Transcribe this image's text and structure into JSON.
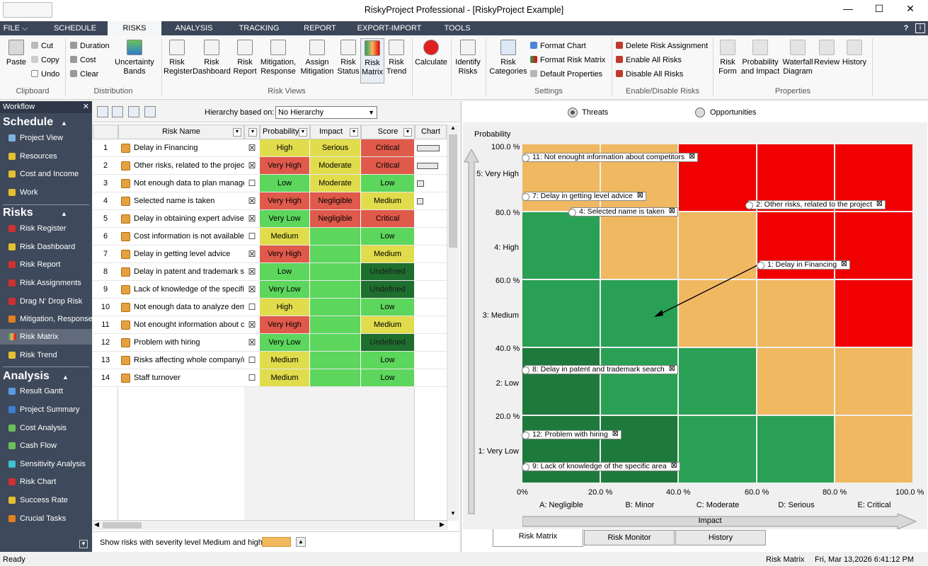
{
  "window": {
    "title": "RiskyProject Professional - [RiskyProject Example]"
  },
  "menu": {
    "tabs": [
      {
        "label": "FILE ⌵"
      },
      {
        "label": "SCHEDULE"
      },
      {
        "label": "RISKS"
      },
      {
        "label": "ANALYSIS"
      },
      {
        "label": "TRACKING"
      },
      {
        "label": "REPORT"
      },
      {
        "label": "EXPORT-IMPORT"
      },
      {
        "label": "TOOLS"
      }
    ],
    "help": "?"
  },
  "ribbon": {
    "paste": "Paste",
    "cut": "Cut",
    "copy": "Copy",
    "undo": "Undo",
    "clipboard": "Clipboard",
    "duration": "Duration",
    "cost": "Cost",
    "clear": "Clear",
    "uncertainty_bands": "Uncertainty Bands",
    "distribution": "Distribution",
    "views": [
      "Risk Register",
      "Risk Dashboard",
      "Risk Report",
      "Mitigation, Response",
      "Assign Mitigation",
      "Risk Status",
      "Risk Matrix",
      "Risk Trend"
    ],
    "risk_views": "Risk Views",
    "calculate": "Calculate",
    "identify_risks": "Identify Risks",
    "risk_categories": "Risk Categories",
    "format_chart": "Format Chart",
    "format_risk_matrix": "Format Risk Matrix",
    "default_properties": "Default Properties",
    "settings": "Settings",
    "delete_risk_assignment": "Delete Risk Assignment",
    "enable_all_risks": "Enable All Risks",
    "disable_all_risks": "Disable All Risks",
    "enable_disable": "Enable/Disable Risks",
    "props": [
      "Risk Form",
      "Probability and Impact",
      "Waterfall Diagram",
      "Review",
      "History"
    ],
    "properties": "Properties"
  },
  "workflow": {
    "header": "Workflow",
    "schedule": {
      "title": "Schedule",
      "items": [
        "Project View",
        "Resources",
        "Cost and Income",
        "Work"
      ]
    },
    "risks": {
      "title": "Risks",
      "items": [
        "Risk Register",
        "Risk Dashboard",
        "Risk Report",
        "Risk Assignments",
        "Drag N' Drop Risk",
        "Mitigation, Response",
        "Risk Matrix",
        "Risk Trend"
      ]
    },
    "analysis": {
      "title": "Analysis",
      "items": [
        "Result Gantt",
        "Project Summary",
        "Cost Analysis",
        "Cash Flow",
        "Sensitivity Analysis",
        "Risk Chart",
        "Success Rate",
        "Crucial Tasks"
      ]
    }
  },
  "grid": {
    "hierarchy_label": "Hierarchy based on:",
    "hierarchy_value": "No Hierarchy",
    "columns": {
      "name": "Risk Name",
      "probability": "Probability",
      "impact": "Impact",
      "score": "Score",
      "chart": "Chart"
    },
    "rows": [
      {
        "n": "1",
        "name": "Delay in Financing",
        "chk": "☒",
        "prob": "High",
        "imp": "Serious",
        "score": "Critical"
      },
      {
        "n": "2",
        "name": "Other risks, related to the project",
        "chk": "☒",
        "prob": "Very High",
        "imp": "Moderate",
        "score": "Critical"
      },
      {
        "n": "3",
        "name": "Not enough data to plan manager",
        "chk": "☐",
        "prob": "Low",
        "imp": "Moderate",
        "score": "Low"
      },
      {
        "n": "4",
        "name": "Selected name is taken",
        "chk": "☒",
        "prob": "Very High",
        "imp": "Negligible",
        "score": "Medium"
      },
      {
        "n": "5",
        "name": "Delay in obtaining expert advise",
        "chk": "☒",
        "prob": "Very Low",
        "imp": "Negligible",
        "score": "Critical"
      },
      {
        "n": "6",
        "name": "Cost information is not available",
        "chk": "☐",
        "prob": "Medium",
        "imp": "",
        "score": "Low"
      },
      {
        "n": "7",
        "name": "Delay in getting level advice",
        "chk": "☒",
        "prob": "Very High",
        "imp": "",
        "score": "Medium"
      },
      {
        "n": "8",
        "name": "Delay in patent and trademark se",
        "chk": "☒",
        "prob": "Low",
        "imp": "",
        "score": "Undefined"
      },
      {
        "n": "9",
        "name": "Lack of knowledge of the specific",
        "chk": "☒",
        "prob": "Very Low",
        "imp": "",
        "score": "Undefined"
      },
      {
        "n": "10",
        "name": "Not enough data to analyze dema",
        "chk": "☐",
        "prob": "High",
        "imp": "",
        "score": "Low"
      },
      {
        "n": "11",
        "name": "Not enought information about co",
        "chk": "☒",
        "prob": "Very High",
        "imp": "",
        "score": "Medium"
      },
      {
        "n": "12",
        "name": "Problem with hiring",
        "chk": "☒",
        "prob": "Very Low",
        "imp": "",
        "score": "Undefined"
      },
      {
        "n": "13",
        "name": "Risks affecting whole company/d",
        "chk": "☐",
        "prob": "Medium",
        "imp": "",
        "score": "Low"
      },
      {
        "n": "14",
        "name": "Staff turnover",
        "chk": "☐",
        "prob": "Medium",
        "imp": "",
        "score": "Low"
      }
    ],
    "severity_text": "Show risks with severity level Medium and higher"
  },
  "matrix": {
    "threats": "Threats",
    "opportunities": "Opportunities",
    "y_title": "Probability",
    "x_title": "Impact",
    "y_ticks": [
      "100.0 %",
      "80.0 %",
      "60.0 %",
      "40.0 %",
      "20.0 %"
    ],
    "y_cats": [
      "5: Very High",
      "4: High",
      "3: Medium",
      "2: Low",
      "1: Very Low"
    ],
    "x_ticks": [
      "0%",
      "20.0 %",
      "40.0 %",
      "60.0 %",
      "80.0 %",
      "100.0 %"
    ],
    "x_cats": [
      "A: Negligible",
      "B: Minor",
      "C: Moderate",
      "D: Serious",
      "E: Critical"
    ],
    "labels": [
      "11: Not enought information about competitors",
      "7: Delay in getting level advice",
      "4: Selected name is taken",
      "2: Other risks, related to the project",
      "1: Delay in Financing",
      "8: Delay in patent and trademark search",
      "12: Problem with hiring",
      "9: Lack of knowledge of the specific area"
    ],
    "tabs": [
      "Risk Matrix",
      "Risk Monitor",
      "History"
    ]
  },
  "status": {
    "left": "Ready",
    "view": "Risk Matrix",
    "datetime": "Fri, Mar 13,2026  6:41:12 PM"
  }
}
